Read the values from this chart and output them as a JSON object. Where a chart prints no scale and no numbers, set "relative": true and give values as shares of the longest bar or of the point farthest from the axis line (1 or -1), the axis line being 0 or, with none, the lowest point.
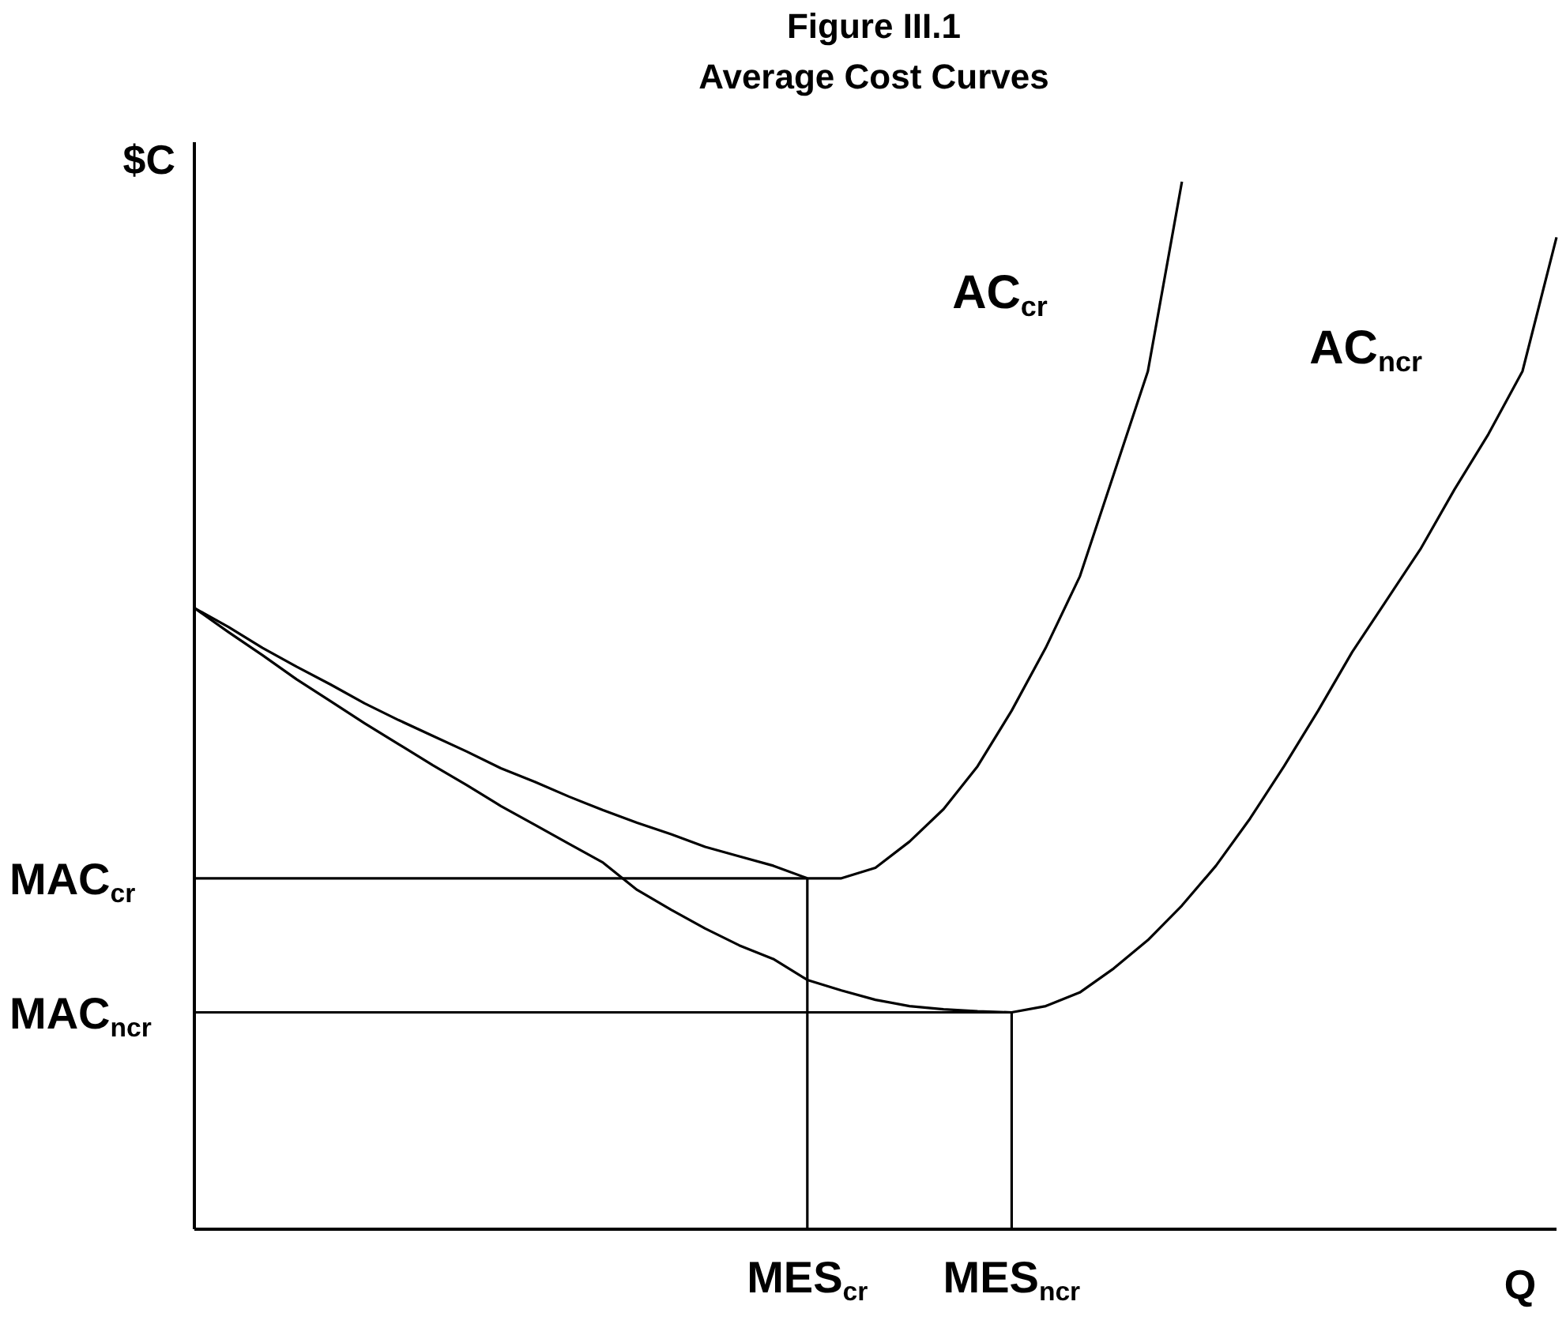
{
  "chart_data": {
    "type": "line",
    "title": "Figure III.1",
    "subtitle": "Average Cost Curves",
    "xlabel": "Q",
    "ylabel": "$C",
    "relative": true,
    "marker": "none",
    "line_style": "solid",
    "categories": [
      null,
      null,
      null,
      null,
      null,
      null,
      null,
      null,
      null,
      null,
      null,
      null,
      null,
      null,
      null,
      null,
      null,
      null,
      "MES$_{cr}$",
      null,
      null,
      null,
      null,
      null,
      "MES$_{ncr}$",
      null,
      null,
      null,
      null,
      null,
      null,
      null,
      null,
      null,
      null,
      null,
      null,
      null,
      null,
      null,
      null
    ],
    "series": [
      {
        "name": "AC$_{cr}$",
        "color": "#000000",
        "values": [
          0.593,
          0.575,
          0.555,
          0.537,
          0.52,
          0.502,
          0.486,
          0.471,
          0.456,
          0.44,
          0.427,
          0.413,
          0.4,
          0.388,
          0.377,
          0.365,
          0.356,
          0.347,
          0.335,
          0.335,
          0.345,
          0.37,
          0.401,
          0.442,
          0.495,
          0.555,
          0.623,
          0.721,
          0.819,
          1,
          null,
          null,
          null,
          null,
          null,
          null,
          null,
          null,
          null,
          null,
          null
        ]
      },
      {
        "name": "AC$_{ncr}$",
        "color": "#000000",
        "values": [
          0.593,
          0.57,
          0.548,
          0.525,
          0.504,
          0.483,
          0.463,
          0.443,
          0.424,
          0.404,
          0.386,
          0.368,
          0.35,
          0.324,
          0.305,
          0.287,
          0.271,
          0.258,
          0.238,
          0.228,
          0.219,
          0.213,
          0.21,
          0.208,
          0.207,
          0.213,
          0.226,
          0.249,
          0.276,
          0.309,
          0.347,
          0.392,
          0.442,
          0.495,
          0.551,
          0.6,
          0.649,
          0.706,
          0.759,
          0.819,
          0.947
        ]
      }
    ],
    "ref_lines": [
      {
        "axis": "y",
        "value": 0.335,
        "label": "MAC$_{cr}$",
        "color": "#000000"
      },
      {
        "axis": "x",
        "value": "MES$_{cr}$",
        "color": "#000000"
      },
      {
        "axis": "y",
        "value": 0.207,
        "label": "MAC$_{ncr}$",
        "color": "#000000"
      },
      {
        "axis": "x",
        "value": "MES$_{ncr}$",
        "color": "#000000"
      }
    ]
  }
}
